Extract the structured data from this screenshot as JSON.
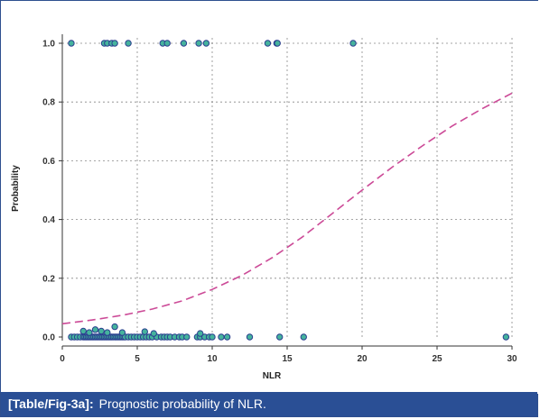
{
  "caption": {
    "tag": "[Table/Fig-3a]:",
    "text": "Prognostic probability of NLR."
  },
  "colors": {
    "frame": "#2e4f8f",
    "caption_bg": "#2a4f95",
    "plot_bg": "#ffffff",
    "point_fill": "#45b39d",
    "point_stroke": "#2a3f8f",
    "curve": "#cc4a97",
    "grid": "#888888"
  },
  "chart_data": {
    "type": "scatter",
    "title": "",
    "xlabel": "NLR",
    "ylabel": "Probability",
    "xlim": [
      0,
      30
    ],
    "ylim": [
      0,
      1
    ],
    "xticks": [
      "0",
      "5",
      "10",
      "15",
      "20",
      "25",
      "30"
    ],
    "yticks": [
      "0.0",
      "0.2",
      "0.4",
      "0.6",
      "0.8",
      "1.0"
    ],
    "grid": true,
    "points_y1": [
      0.6,
      2.8,
      3.0,
      3.3,
      3.5,
      4.4,
      6.7,
      7.0,
      8.1,
      9.1,
      9.6,
      13.7,
      14.3,
      14.35,
      19.4
    ],
    "points_y0": [
      0.6,
      0.8,
      1.0,
      1.2,
      1.4,
      1.5,
      1.6,
      1.7,
      1.8,
      1.9,
      2.0,
      2.1,
      2.2,
      2.3,
      2.4,
      2.5,
      2.6,
      2.7,
      2.8,
      2.9,
      3.0,
      3.1,
      3.2,
      3.3,
      3.4,
      3.5,
      3.6,
      3.7,
      3.8,
      3.9,
      4.0,
      4.1,
      4.2,
      4.4,
      4.6,
      4.8,
      5.0,
      5.2,
      5.4,
      5.6,
      5.8,
      6.0,
      6.3,
      6.6,
      6.8,
      7.0,
      7.2,
      7.5,
      7.8,
      8.0,
      8.3,
      9.0,
      9.2,
      9.5,
      9.8,
      10.0,
      10.6,
      11.0,
      12.5,
      14.5,
      16.1,
      29.6
    ],
    "points_y0_raised": [
      [
        1.4,
        0.02
      ],
      [
        1.8,
        0.015
      ],
      [
        2.2,
        0.025
      ],
      [
        2.6,
        0.02
      ],
      [
        3.0,
        0.015
      ],
      [
        3.5,
        0.035
      ],
      [
        4.0,
        0.015
      ],
      [
        5.5,
        0.018
      ],
      [
        6.1,
        0.012
      ],
      [
        9.2,
        0.012
      ]
    ],
    "curve": {
      "model": "logistic",
      "x": [
        0,
        2,
        4,
        6,
        8,
        10,
        12,
        14,
        16,
        18,
        20,
        22,
        24,
        26,
        28,
        30
      ],
      "y": [
        0.045,
        0.058,
        0.074,
        0.095,
        0.123,
        0.162,
        0.21,
        0.27,
        0.34,
        0.42,
        0.5,
        0.578,
        0.65,
        0.718,
        0.777,
        0.83
      ]
    }
  }
}
